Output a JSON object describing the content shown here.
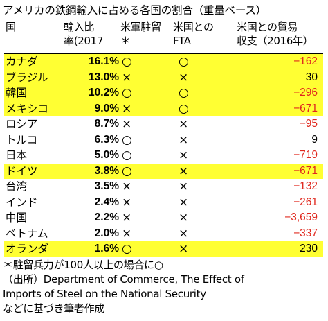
{
  "title": "アメリカの鉄鋼輸入に占める各国の割合（重量ベース）",
  "columns": {
    "country": "国",
    "share": "輸入比\n率(2017",
    "troops": "米軍駐留\n＊",
    "fta": "米国との\nFTA",
    "balance": "米国との貿易\n収支（2016年）"
  },
  "rows": [
    {
      "country": "カナダ",
      "share": "16.1%",
      "troops": "○",
      "fta": "○",
      "balance": "−162",
      "negative": true,
      "highlight": true
    },
    {
      "country": "ブラジル",
      "share": "13.0%",
      "troops": "×",
      "fta": "×",
      "balance": "30",
      "negative": false,
      "highlight": true
    },
    {
      "country": "韓国",
      "share": "10.2%",
      "troops": "○",
      "fta": "○",
      "balance": "−296",
      "negative": true,
      "highlight": true
    },
    {
      "country": "メキシコ",
      "share": "9.0%",
      "troops": "×",
      "fta": "○",
      "balance": "−671",
      "negative": true,
      "highlight": true
    },
    {
      "country": "ロシア",
      "share": "8.7%",
      "troops": "×",
      "fta": "×",
      "balance": "−95",
      "negative": true,
      "highlight": false
    },
    {
      "country": "トルコ",
      "share": "6.3%",
      "troops": "○",
      "fta": "×",
      "balance": "9",
      "negative": false,
      "highlight": false
    },
    {
      "country": "日本",
      "share": "5.0%",
      "troops": "○",
      "fta": "×",
      "balance": "−719",
      "negative": true,
      "highlight": false
    },
    {
      "country": "ドイツ",
      "share": "3.8%",
      "troops": "○",
      "fta": "×",
      "balance": "−671",
      "negative": true,
      "highlight": true
    },
    {
      "country": "台湾",
      "share": "3.5%",
      "troops": "×",
      "fta": "×",
      "balance": "−132",
      "negative": true,
      "highlight": false
    },
    {
      "country": "インド",
      "share": "2.4%",
      "troops": "×",
      "fta": "×",
      "balance": "−261",
      "negative": true,
      "highlight": false
    },
    {
      "country": "中国",
      "share": "2.2%",
      "troops": "×",
      "fta": "×",
      "balance": "−3,659",
      "negative": true,
      "highlight": false
    },
    {
      "country": "ベトナム",
      "share": "2.0%",
      "troops": "×",
      "fta": "×",
      "balance": "−337",
      "negative": true,
      "highlight": false
    },
    {
      "country": "オランダ",
      "share": "1.6%",
      "troops": "○",
      "fta": "×",
      "balance": "230",
      "negative": false,
      "highlight": true
    }
  ],
  "notes": [
    "＊駐留兵力が100人以上の場合に○",
    "（出所）Department of Commerce, The Effect of",
    "Imports of Steel on the National Security",
    "などに基づき筆者作成"
  ],
  "colors": {
    "highlight": "#ffff33",
    "negative": "#e0281e",
    "text": "#000000"
  }
}
